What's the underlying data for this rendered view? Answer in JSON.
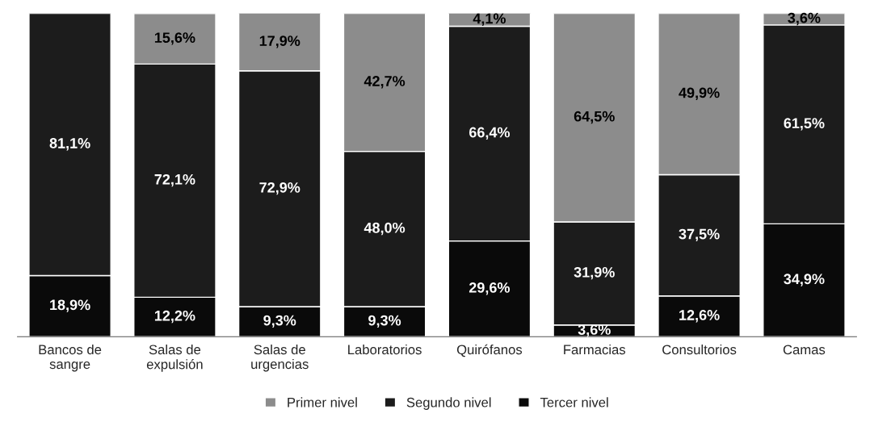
{
  "chart_data": {
    "type": "bar",
    "stacked": true,
    "categories": [
      "Bancos de\nsangre",
      "Salas de\nexpulsión",
      "Salas de\nurgencias",
      "Laboratorios",
      "Quirófanos",
      "Farmacias",
      "Consultorios",
      "Camas"
    ],
    "series": [
      {
        "name": "Tercer nivel",
        "color": "#0a0a0a",
        "values": [
          18.9,
          12.2,
          9.3,
          9.3,
          29.6,
          3.6,
          12.6,
          34.9
        ],
        "value_labels": [
          "18,9%",
          "12,2%",
          "9,3%",
          "9,3%",
          "29,6%",
          "3,6%",
          "12,6%",
          "34,9%"
        ]
      },
      {
        "name": "Segundo nivel",
        "color": "#1c1c1c",
        "values": [
          81.1,
          72.1,
          72.9,
          48.0,
          66.4,
          31.9,
          37.5,
          61.5
        ],
        "value_labels": [
          "81,1%",
          "72,1%",
          "72,9%",
          "48,0%",
          "66,4%",
          "31,9%",
          "37,5%",
          "61,5%"
        ]
      },
      {
        "name": "Primer nivel",
        "color": "#8c8c8c",
        "values": [
          null,
          15.6,
          17.9,
          42.7,
          4.1,
          64.5,
          49.9,
          3.6
        ],
        "value_labels": [
          null,
          "15,6%",
          "17,9%",
          "42,7%",
          "4,1%",
          "64,5%",
          "49,9%",
          "3,6%"
        ]
      }
    ],
    "ylim": [
      0,
      100
    ],
    "tick_labels": "x",
    "legend": "bottom",
    "grid": false
  }
}
